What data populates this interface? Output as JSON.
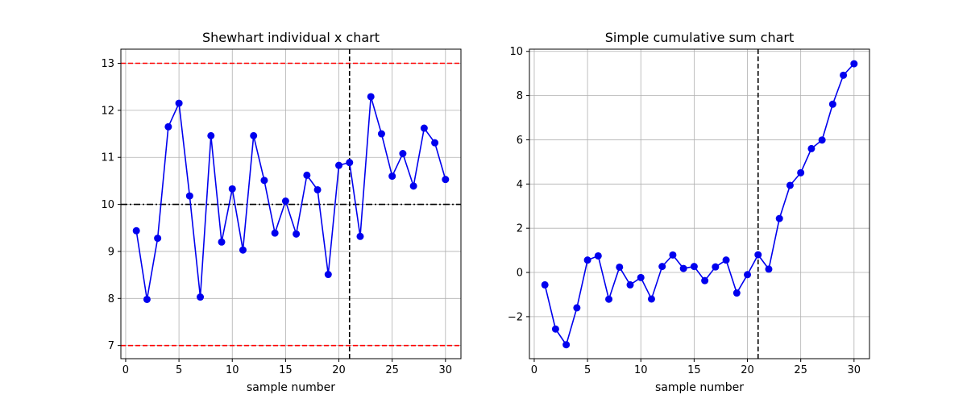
{
  "chart_data": [
    {
      "type": "line",
      "title": "Shewhart individual x chart",
      "xlabel": "sample number",
      "ylabel": "",
      "xlim": [
        -0.45,
        31.45
      ],
      "ylim": [
        6.72,
        13.3
      ],
      "xticks": [
        0,
        5,
        10,
        15,
        20,
        25,
        30
      ],
      "xtick_labels": [
        "0",
        "5",
        "10",
        "15",
        "20",
        "25",
        "30"
      ],
      "yticks": [
        7,
        8,
        9,
        10,
        11,
        12,
        13
      ],
      "ytick_labels": [
        "7",
        "8",
        "9",
        "10",
        "11",
        "12",
        "13"
      ],
      "grid": true,
      "series": [
        {
          "color": "#0000ee",
          "marker": "circle",
          "x": [
            1,
            2,
            3,
            4,
            5,
            6,
            7,
            8,
            9,
            10,
            11,
            12,
            13,
            14,
            15,
            16,
            17,
            18,
            19,
            20,
            21,
            22,
            23,
            24,
            25,
            26,
            27,
            28,
            29,
            30
          ],
          "y": [
            9.44,
            7.98,
            9.28,
            11.65,
            12.15,
            10.18,
            8.03,
            11.46,
            9.2,
            10.33,
            9.03,
            11.46,
            10.51,
            9.39,
            10.07,
            9.37,
            10.62,
            10.31,
            8.51,
            10.83,
            10.89,
            9.32,
            12.29,
            11.5,
            10.6,
            11.08,
            10.39,
            11.62,
            11.31,
            10.53
          ]
        }
      ],
      "hlines": [
        {
          "y": 13,
          "style": "dashed",
          "color": "#ff0000"
        },
        {
          "y": 7,
          "style": "dashed",
          "color": "#ff0000"
        },
        {
          "y": 10,
          "style": "dashdot",
          "color": "#000000"
        }
      ],
      "vlines": [
        {
          "x": 21,
          "style": "dashed",
          "color": "#000000"
        }
      ]
    },
    {
      "type": "line",
      "title": "Simple cumulative sum chart",
      "xlabel": "sample number",
      "ylabel": "",
      "xlim": [
        -0.45,
        31.45
      ],
      "ylim": [
        -3.9,
        10.1
      ],
      "xticks": [
        0,
        5,
        10,
        15,
        20,
        25,
        30
      ],
      "xtick_labels": [
        "0",
        "5",
        "10",
        "15",
        "20",
        "25",
        "30"
      ],
      "yticks": [
        -2,
        0,
        2,
        4,
        6,
        8,
        10
      ],
      "ytick_labels": [
        "−2",
        "0",
        "2",
        "4",
        "6",
        "8",
        "10"
      ],
      "grid": true,
      "series": [
        {
          "color": "#0000ee",
          "marker": "circle",
          "x": [
            1,
            2,
            3,
            4,
            5,
            6,
            7,
            8,
            9,
            10,
            11,
            12,
            13,
            14,
            15,
            16,
            17,
            18,
            19,
            20,
            21,
            22,
            23,
            24,
            25,
            26,
            27,
            28,
            29,
            30
          ],
          "y": [
            -0.56,
            -2.56,
            -3.27,
            -1.6,
            0.56,
            0.75,
            -1.21,
            0.24,
            -0.56,
            -0.23,
            -1.2,
            0.27,
            0.79,
            0.18,
            0.27,
            -0.37,
            0.25,
            0.56,
            -0.93,
            -0.1,
            0.8,
            0.15,
            2.44,
            3.94,
            4.51,
            5.6,
            5.99,
            7.61,
            8.92,
            9.44
          ]
        }
      ],
      "hlines": [],
      "vlines": [
        {
          "x": 21,
          "style": "dashed",
          "color": "#000000"
        }
      ]
    }
  ]
}
